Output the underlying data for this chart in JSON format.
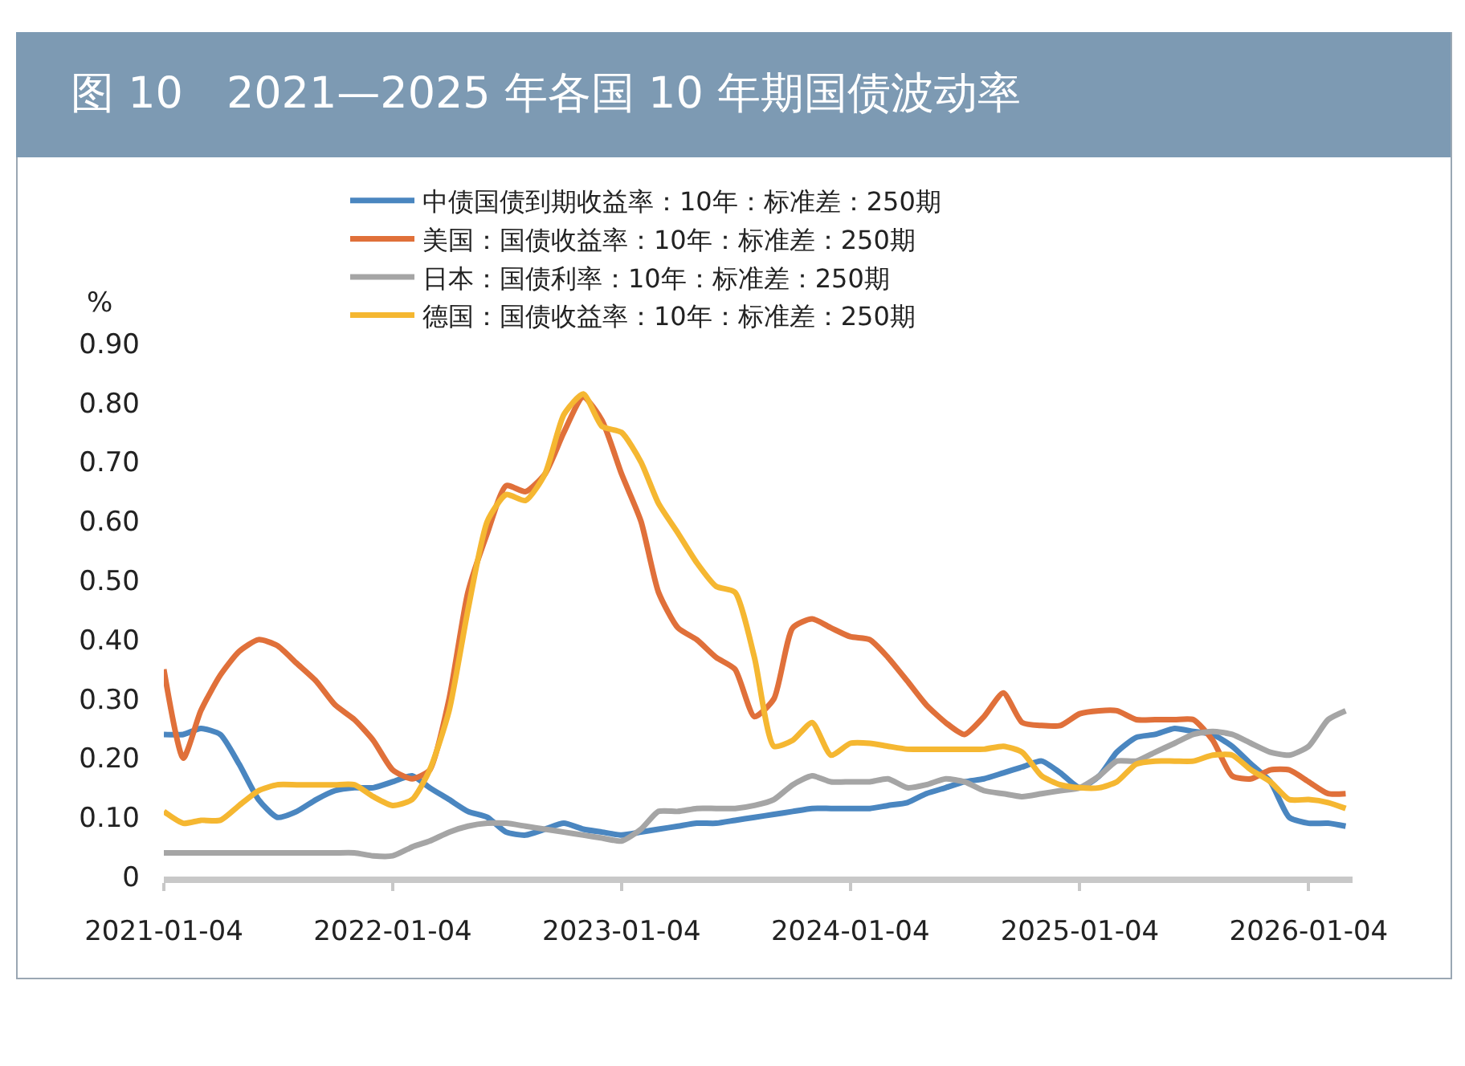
{
  "chart_data": {
    "type": "line",
    "title": "图 10　2021—2025 年各国 10 年期国债波动率",
    "ylabel": "%",
    "x": [
      "2021-01-04",
      "2021-02-04",
      "2021-03-04",
      "2021-04-04",
      "2021-05-04",
      "2021-06-04",
      "2021-07-04",
      "2021-08-04",
      "2021-09-04",
      "2021-10-04",
      "2021-11-04",
      "2021-12-04",
      "2022-01-04",
      "2022-02-04",
      "2022-03-04",
      "2022-04-04",
      "2022-05-04",
      "2022-06-04",
      "2022-07-04",
      "2022-08-04",
      "2022-09-04",
      "2022-10-04",
      "2022-11-04",
      "2022-12-04",
      "2023-01-04",
      "2023-02-04",
      "2023-03-04",
      "2023-04-04",
      "2023-05-04",
      "2023-06-04",
      "2023-07-04",
      "2023-08-04",
      "2023-09-04",
      "2023-10-04",
      "2023-11-04",
      "2023-12-04",
      "2024-01-04",
      "2024-02-04",
      "2024-03-04",
      "2024-04-04",
      "2024-05-04",
      "2024-06-04",
      "2024-07-04",
      "2024-08-04",
      "2024-09-04",
      "2024-10-04",
      "2024-11-04",
      "2024-12-04",
      "2025-01-04",
      "2025-02-04",
      "2025-03-04",
      "2025-04-04",
      "2025-05-04",
      "2025-06-04",
      "2025-07-04",
      "2025-08-04",
      "2025-09-04",
      "2025-10-04",
      "2025-11-04",
      "2025-12-04",
      "2026-01-04",
      "2026-02-04",
      "2026-03-04"
    ],
    "series": [
      {
        "name": "中债国债到期收益率：10年：标准差：250期",
        "color": "#4a86c0",
        "values": [
          0.24,
          0.24,
          0.25,
          0.24,
          0.19,
          0.13,
          0.1,
          0.11,
          0.13,
          0.145,
          0.15,
          0.15,
          0.16,
          0.17,
          0.15,
          0.13,
          0.11,
          0.1,
          0.075,
          0.07,
          0.08,
          0.09,
          0.08,
          0.075,
          0.07,
          0.075,
          0.08,
          0.085,
          0.09,
          0.09,
          0.095,
          0.1,
          0.105,
          0.11,
          0.115,
          0.115,
          0.115,
          0.115,
          0.12,
          0.125,
          0.14,
          0.15,
          0.16,
          0.165,
          0.175,
          0.185,
          0.195,
          0.175,
          0.15,
          0.17,
          0.21,
          0.235,
          0.24,
          0.25,
          0.245,
          0.24,
          0.22,
          0.19,
          0.16,
          0.1,
          0.09,
          0.09,
          0.085
        ]
      },
      {
        "name": "美国：国债收益率：10年：标准差：250期",
        "color": "#e0703a",
        "values": [
          0.35,
          0.2,
          0.28,
          0.34,
          0.38,
          0.4,
          0.39,
          0.36,
          0.33,
          0.29,
          0.265,
          0.23,
          0.18,
          0.165,
          0.18,
          0.3,
          0.48,
          0.58,
          0.66,
          0.65,
          0.68,
          0.75,
          0.81,
          0.77,
          0.68,
          0.6,
          0.48,
          0.42,
          0.4,
          0.37,
          0.35,
          0.27,
          0.3,
          0.42,
          0.435,
          0.42,
          0.405,
          0.4,
          0.37,
          0.33,
          0.29,
          0.26,
          0.24,
          0.27,
          0.31,
          0.26,
          0.255,
          0.255,
          0.275,
          0.28,
          0.28,
          0.265,
          0.265,
          0.265,
          0.265,
          0.23,
          0.17,
          0.165,
          0.18,
          0.18,
          0.16,
          0.14,
          0.14
        ]
      },
      {
        "name": "日本：国债利率：10年：标准差：250期",
        "color": "#a5a5a5",
        "values": [
          0.04,
          0.04,
          0.04,
          0.04,
          0.04,
          0.04,
          0.04,
          0.04,
          0.04,
          0.04,
          0.04,
          0.035,
          0.035,
          0.05,
          0.06,
          0.075,
          0.085,
          0.09,
          0.09,
          0.085,
          0.08,
          0.075,
          0.07,
          0.065,
          0.06,
          0.08,
          0.11,
          0.11,
          0.115,
          0.115,
          0.115,
          0.12,
          0.13,
          0.155,
          0.17,
          0.16,
          0.16,
          0.16,
          0.165,
          0.15,
          0.155,
          0.165,
          0.16,
          0.145,
          0.14,
          0.135,
          0.14,
          0.145,
          0.15,
          0.17,
          0.195,
          0.195,
          0.21,
          0.225,
          0.24,
          0.245,
          0.24,
          0.225,
          0.21,
          0.205,
          0.22,
          0.265,
          0.28
        ]
      },
      {
        "name": "德国：国债收益率：10年：标准差：250期",
        "color": "#f5b731",
        "values": [
          0.11,
          0.09,
          0.095,
          0.095,
          0.12,
          0.145,
          0.155,
          0.155,
          0.155,
          0.155,
          0.155,
          0.135,
          0.12,
          0.13,
          0.18,
          0.28,
          0.45,
          0.6,
          0.645,
          0.635,
          0.68,
          0.78,
          0.815,
          0.76,
          0.75,
          0.7,
          0.63,
          0.58,
          0.53,
          0.49,
          0.48,
          0.37,
          0.22,
          0.23,
          0.26,
          0.205,
          0.225,
          0.225,
          0.22,
          0.215,
          0.215,
          0.215,
          0.215,
          0.215,
          0.22,
          0.21,
          0.17,
          0.155,
          0.15,
          0.15,
          0.16,
          0.19,
          0.195,
          0.195,
          0.195,
          0.205,
          0.205,
          0.18,
          0.16,
          0.13,
          0.13,
          0.125,
          0.115
        ]
      }
    ],
    "xlim": [
      "2021-01-04",
      "2026-03-15"
    ],
    "xticks": [
      {
        "value": "2021-01-04",
        "label": "2021-01-04"
      },
      {
        "value": "2022-01-04",
        "label": "2022-01-04"
      },
      {
        "value": "2023-01-04",
        "label": "2023-01-04"
      },
      {
        "value": "2024-01-04",
        "label": "2024-01-04"
      },
      {
        "value": "2025-01-04",
        "label": "2025-01-04"
      },
      {
        "value": "2026-01-04",
        "label": "2026-01-04"
      }
    ],
    "ylim": [
      0,
      0.9
    ],
    "yticks": [
      0,
      {
        "value": 0.1,
        "label": "0.10"
      },
      {
        "value": 0.2,
        "label": "0.20"
      },
      {
        "value": 0.3,
        "label": "0.30"
      },
      {
        "value": 0.4,
        "label": "0.40"
      },
      {
        "value": 0.5,
        "label": "0.50"
      },
      {
        "value": 0.6,
        "label": "0.60"
      },
      {
        "value": 0.7,
        "label": "0.70"
      },
      {
        "value": 0.8,
        "label": "0.80"
      },
      {
        "value": 0.9,
        "label": "0.90"
      }
    ],
    "grid": false,
    "legend": "top",
    "line_style": "solid",
    "marker": "none"
  }
}
